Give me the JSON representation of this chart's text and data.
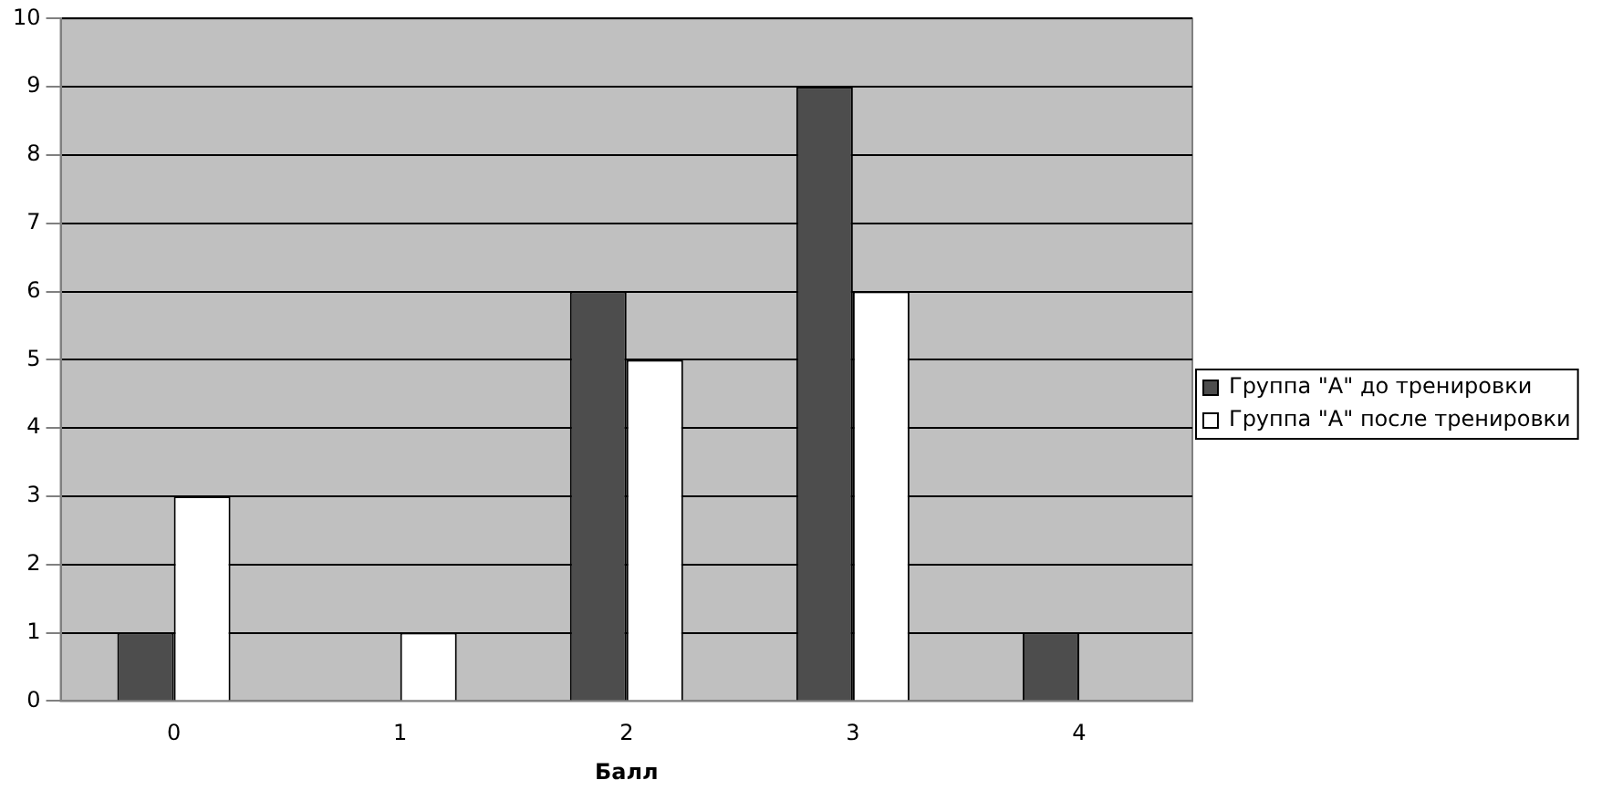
{
  "chart_data": {
    "type": "bar",
    "xlabel": "Балл",
    "categories": [
      "0",
      "1",
      "2",
      "3",
      "4"
    ],
    "series": [
      {
        "name": "Группа \"А\" до тренировки",
        "color": "#4d4d4d",
        "values": [
          1,
          0,
          6,
          9,
          1
        ]
      },
      {
        "name": "Группа \"А\" после тренировки",
        "color": "#ffffff",
        "values": [
          3,
          1,
          5,
          6,
          0
        ]
      }
    ],
    "ylim": [
      0,
      10
    ],
    "yticks": [
      0,
      1,
      2,
      3,
      4,
      5,
      6,
      7,
      8,
      9,
      10
    ],
    "grid": "y",
    "legend": "right"
  }
}
